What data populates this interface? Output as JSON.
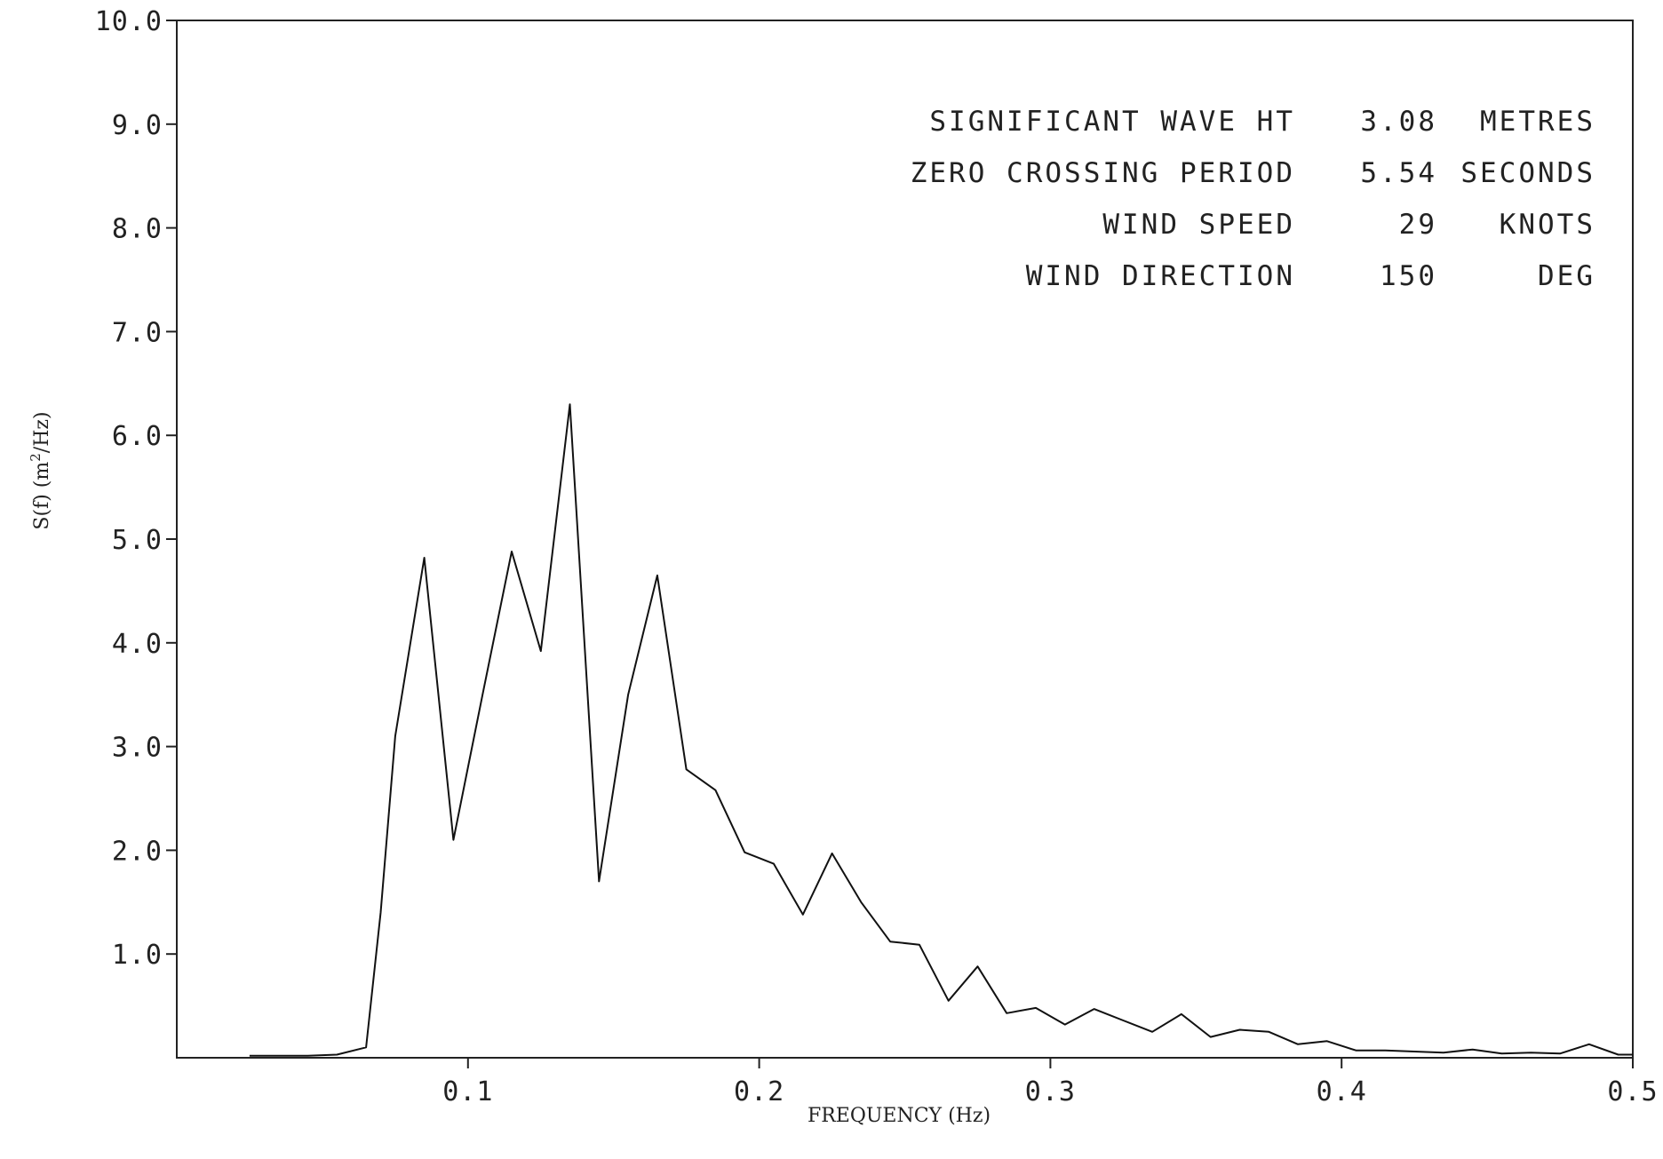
{
  "chart_data": {
    "type": "line",
    "xlabel": "FREQUENCY (Hz)",
    "ylabel_main": "S(f) (m",
    "ylabel_sup": "2",
    "ylabel_tail": "/Hz)",
    "xlim": [
      0,
      0.5
    ],
    "ylim": [
      0,
      10
    ],
    "x_ticks": [
      {
        "value": 0.1,
        "label": "0.1"
      },
      {
        "value": 0.2,
        "label": "0.2"
      },
      {
        "value": 0.3,
        "label": "0.3"
      },
      {
        "value": 0.4,
        "label": "0.4"
      },
      {
        "value": 0.5,
        "label": "0.5"
      }
    ],
    "y_ticks": [
      {
        "value": 1,
        "label": "1.0"
      },
      {
        "value": 2,
        "label": "2.0"
      },
      {
        "value": 3,
        "label": "3.0"
      },
      {
        "value": 4,
        "label": "4.0"
      },
      {
        "value": 5,
        "label": "5.0"
      },
      {
        "value": 6,
        "label": "6.0"
      },
      {
        "value": 7,
        "label": "7.0"
      },
      {
        "value": 8,
        "label": "8.0"
      },
      {
        "value": 9,
        "label": "9.0"
      },
      {
        "value": 10,
        "label": "10.0"
      }
    ],
    "grid": false,
    "series": [
      {
        "x": [
          0.025,
          0.035,
          0.045,
          0.055,
          0.065,
          0.07,
          0.075,
          0.085,
          0.095,
          0.105,
          0.115,
          0.125,
          0.135,
          0.145,
          0.155,
          0.165,
          0.175,
          0.185,
          0.195,
          0.205,
          0.215,
          0.225,
          0.235,
          0.245,
          0.255,
          0.265,
          0.275,
          0.285,
          0.295,
          0.305,
          0.315,
          0.325,
          0.335,
          0.345,
          0.355,
          0.365,
          0.375,
          0.385,
          0.395,
          0.405,
          0.415,
          0.425,
          0.435,
          0.445,
          0.455,
          0.465,
          0.475,
          0.485,
          0.495,
          0.5
        ],
        "y": [
          0.02,
          0.02,
          0.02,
          0.03,
          0.1,
          1.4,
          3.1,
          4.82,
          2.1,
          3.5,
          4.88,
          3.92,
          6.3,
          1.7,
          3.5,
          4.65,
          2.78,
          2.58,
          1.98,
          1.87,
          1.38,
          1.97,
          1.5,
          1.12,
          1.09,
          0.55,
          0.88,
          0.43,
          0.48,
          0.32,
          0.47,
          0.36,
          0.25,
          0.42,
          0.2,
          0.27,
          0.25,
          0.13,
          0.16,
          0.07,
          0.07,
          0.06,
          0.05,
          0.08,
          0.04,
          0.05,
          0.04,
          0.13,
          0.03,
          0.03
        ]
      }
    ]
  },
  "annotations": [
    {
      "label": "SIGNIFICANT WAVE HT",
      "value": "3.08",
      "unit": "METRES"
    },
    {
      "label": "ZERO CROSSING PERIOD",
      "value": "5.54",
      "unit": "SECONDS"
    },
    {
      "label": "WIND SPEED",
      "value": "29",
      "unit": "KNOTS"
    },
    {
      "label": "WIND DIRECTION",
      "value": "150",
      "unit": "DEG"
    }
  ]
}
